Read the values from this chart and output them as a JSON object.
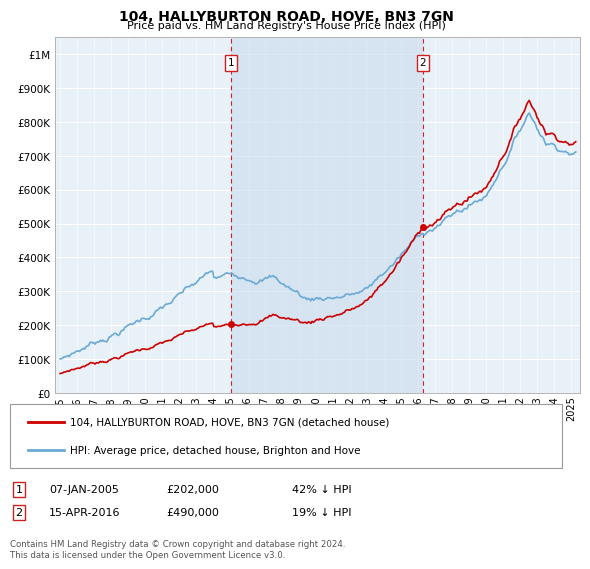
{
  "title": "104, HALLYBURTON ROAD, HOVE, BN3 7GN",
  "subtitle": "Price paid vs. HM Land Registry's House Price Index (HPI)",
  "ylabel_ticks": [
    "£0",
    "£100K",
    "£200K",
    "£300K",
    "£400K",
    "£500K",
    "£600K",
    "£700K",
    "£800K",
    "£900K",
    "£1M"
  ],
  "ytick_values": [
    0,
    100000,
    200000,
    300000,
    400000,
    500000,
    600000,
    700000,
    800000,
    900000,
    1000000
  ],
  "ylim": [
    0,
    1050000
  ],
  "xlim_start": 1994.7,
  "xlim_end": 2025.5,
  "marker1_x": 2005.02,
  "marker1_y": 202000,
  "marker1_label": "1",
  "marker1_date": "07-JAN-2005",
  "marker1_price": "£202,000",
  "marker1_hpi": "42% ↓ HPI",
  "marker2_x": 2016.29,
  "marker2_y": 490000,
  "marker2_label": "2",
  "marker2_date": "15-APR-2016",
  "marker2_price": "£490,000",
  "marker2_hpi": "19% ↓ HPI",
  "legend_line1": "104, HALLYBURTON ROAD, HOVE, BN3 7GN (detached house)",
  "legend_line2": "HPI: Average price, detached house, Brighton and Hove",
  "footnote": "Contains HM Land Registry data © Crown copyright and database right 2024.\nThis data is licensed under the Open Government Licence v3.0.",
  "hpi_color": "#6aaad4",
  "hpi_fill_color": "#cfe0f0",
  "price_color": "#cc0000",
  "marker_color": "#cc0000",
  "vline_color": "#cc2222",
  "bg_color": "#e8f0f8",
  "plot_bg": "#e8f0f8",
  "grid_color": "#ffffff",
  "xticks": [
    1995,
    1996,
    1997,
    1998,
    1999,
    2000,
    2001,
    2002,
    2003,
    2004,
    2005,
    2006,
    2007,
    2008,
    2009,
    2010,
    2011,
    2012,
    2013,
    2014,
    2015,
    2016,
    2017,
    2018,
    2019,
    2020,
    2021,
    2022,
    2023,
    2024,
    2025
  ]
}
